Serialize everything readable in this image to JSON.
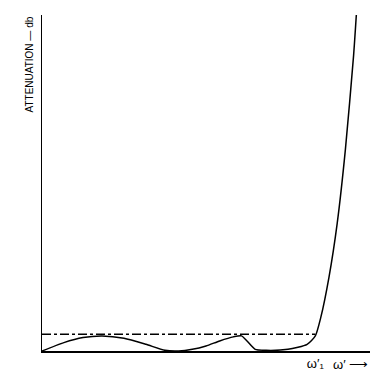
{
  "chart_data": {
    "type": "line",
    "ylabel": "ATTENUATION — db",
    "xlabel": "ω′ ⟶",
    "xlim": [
      0,
      1.2
    ],
    "ylim": [
      0,
      10
    ],
    "xticks": [
      {
        "value": 1,
        "label": "ω′₁"
      }
    ],
    "yticks": [],
    "tick_labels": "x",
    "grid": false,
    "series": [
      {
        "color": "#000000",
        "line_style": "solid",
        "x": [
          0,
          0.08,
          0.15,
          0.22,
          0.3,
          0.38,
          0.45,
          0.5,
          0.55,
          0.6,
          0.65,
          0.7,
          0.73,
          0.75,
          0.78,
          0.82,
          0.9,
          0.97,
          1.0,
          1.02,
          1.05,
          1.08,
          1.11,
          1.14,
          1.15
        ],
        "values": [
          0,
          0.25,
          0.4,
          0.45,
          0.38,
          0.2,
          0.02,
          0,
          0.05,
          0.15,
          0.3,
          0.42,
          0.45,
          0.3,
          0.05,
          0.02,
          0.05,
          0.2,
          0.45,
          1.0,
          2.2,
          3.8,
          6.0,
          8.8,
          10
        ]
      },
      {
        "color": "#000000",
        "line_style": "dashdot",
        "x": [
          0,
          1.0
        ],
        "values": [
          0.5,
          0.5
        ]
      }
    ]
  }
}
